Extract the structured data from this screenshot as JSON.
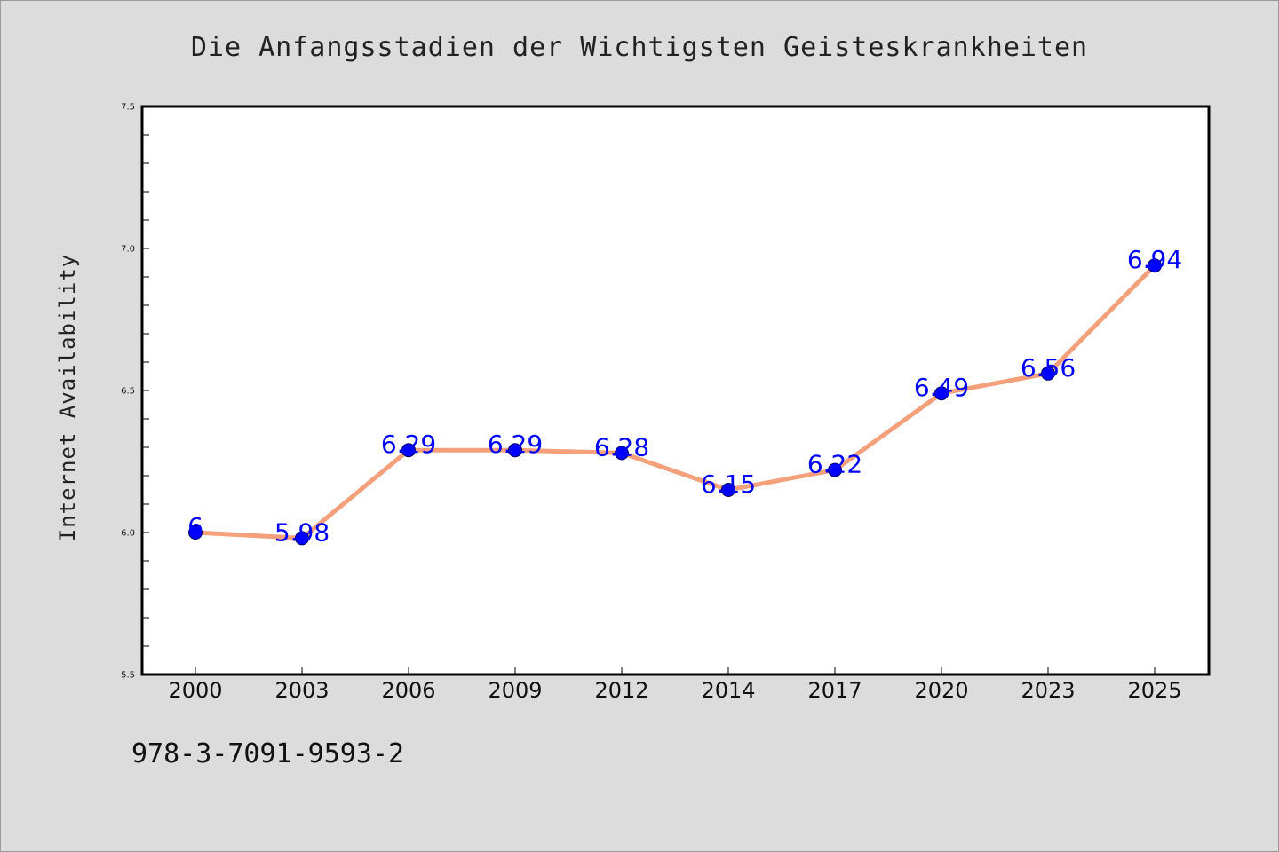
{
  "colors": {
    "background": "#dcdcdc",
    "plot_background": "#ffffff",
    "line": "#f4a07a",
    "marker": "#0000ff",
    "data_label": "#0000ff",
    "axis": "#000000"
  },
  "footer": {
    "isbn": "978-3-7091-9593-2"
  },
  "chart_data": {
    "type": "line",
    "title": "Die Anfangsstadien der Wichtigsten Geisteskrankheiten",
    "xlabel": "",
    "ylabel": "Internet Availability",
    "categories": [
      "2000",
      "2003",
      "2006",
      "2009",
      "2012",
      "2014",
      "2017",
      "2020",
      "2023",
      "2025"
    ],
    "series": [
      {
        "values": [
          6,
          5.98,
          6.29,
          6.29,
          6.28,
          6.15,
          6.22,
          6.49,
          6.56,
          6.94
        ],
        "labels": [
          "6",
          "5.98",
          "6.29",
          "6.29",
          "6.28",
          "6.15",
          "6.22",
          "6.49",
          "6.56",
          "6.94"
        ]
      }
    ],
    "ylim": [
      5.5,
      7.5
    ],
    "yticks": [
      "5.5",
      "6.0",
      "6.5",
      "7.0",
      "7.5"
    ],
    "grid": false,
    "legend": "none"
  }
}
